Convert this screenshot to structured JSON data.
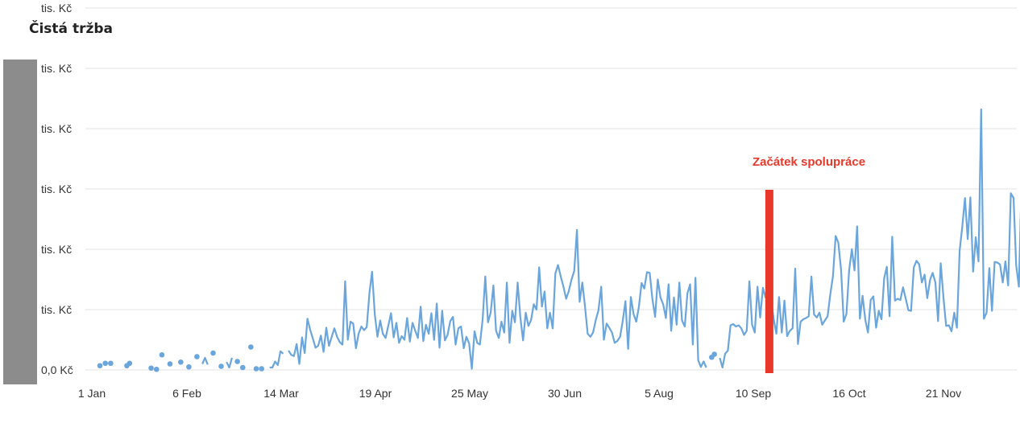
{
  "title": "Čistá tržba",
  "chart_data": {
    "type": "line",
    "ylabels": [
      "0,0 Kč",
      "tis. Kč",
      "tis. Kč",
      "tis. Kč",
      "tis. Kč",
      "tis. Kč",
      "tis. Kč"
    ],
    "xlabels": [
      "1 Jan",
      "6 Feb",
      "14 Mar",
      "19 Apr",
      "25 May",
      "30 Jun",
      "5 Aug",
      "10 Sep",
      "16 Oct",
      "21 Nov"
    ],
    "annotation": {
      "label": "Začátek spolupráce",
      "day": 246
    },
    "series": [
      {
        "color": "#6aa5dc",
        "points": [
          [
            0,
            0.07
          ],
          [
            2,
            0.11
          ],
          [
            4,
            0.11
          ],
          [
            10,
            0.07
          ],
          [
            11,
            0.11
          ],
          [
            19,
            0.03
          ],
          [
            21,
            0.01
          ],
          [
            23,
            0.25
          ],
          [
            26,
            0.1
          ],
          [
            30,
            0.13
          ],
          [
            33,
            0.05
          ],
          [
            36,
            0.22
          ],
          [
            38,
            0.1
          ],
          [
            39,
            0.2
          ],
          [
            40,
            0.09
          ],
          [
            42,
            0.28
          ],
          [
            45,
            0.06
          ],
          [
            47,
            0.13
          ],
          [
            48,
            0.04
          ],
          [
            49,
            0.2
          ],
          [
            51,
            0.14
          ],
          [
            53,
            0.04
          ],
          [
            56,
            0.38
          ],
          [
            58,
            0.02
          ],
          [
            60,
            0.02
          ],
          [
            63,
            0.04
          ],
          [
            64,
            0.04
          ],
          [
            65,
            0.14
          ],
          [
            66,
            0.08
          ],
          [
            67,
            0.31
          ],
          [
            68,
            0.27
          ],
          [
            70,
            0.32
          ],
          [
            71,
            0.25
          ],
          [
            72,
            0.23
          ],
          [
            73,
            0.43
          ],
          [
            74,
            0.1
          ],
          [
            75,
            0.54
          ],
          [
            76,
            0.28
          ],
          [
            77,
            0.85
          ],
          [
            78,
            0.67
          ],
          [
            79,
            0.52
          ],
          [
            80,
            0.37
          ],
          [
            81,
            0.4
          ],
          [
            82,
            0.57
          ],
          [
            83,
            0.3
          ],
          [
            84,
            0.7
          ],
          [
            85,
            0.4
          ],
          [
            86,
            0.55
          ],
          [
            87,
            0.69
          ],
          [
            88,
            0.55
          ],
          [
            89,
            0.46
          ],
          [
            90,
            0.42
          ],
          [
            91,
            1.47
          ],
          [
            92,
            0.5
          ],
          [
            93,
            0.8
          ],
          [
            94,
            0.77
          ],
          [
            95,
            0.36
          ],
          [
            96,
            0.6
          ],
          [
            97,
            0.72
          ],
          [
            98,
            0.66
          ],
          [
            99,
            0.71
          ],
          [
            100,
            1.27
          ],
          [
            101,
            1.63
          ],
          [
            102,
            0.92
          ],
          [
            103,
            0.55
          ],
          [
            104,
            0.82
          ],
          [
            105,
            0.6
          ],
          [
            106,
            0.53
          ],
          [
            107,
            0.73
          ],
          [
            108,
            0.94
          ],
          [
            109,
            0.54
          ],
          [
            110,
            0.78
          ],
          [
            111,
            0.45
          ],
          [
            112,
            0.56
          ],
          [
            113,
            0.5
          ],
          [
            114,
            0.86
          ],
          [
            115,
            0.47
          ],
          [
            116,
            0.78
          ],
          [
            117,
            0.65
          ],
          [
            118,
            0.53
          ],
          [
            119,
            1.05
          ],
          [
            120,
            0.48
          ],
          [
            121,
            0.75
          ],
          [
            122,
            0.6
          ],
          [
            123,
            0.94
          ],
          [
            124,
            0.5
          ],
          [
            125,
            1.1
          ],
          [
            126,
            0.37
          ],
          [
            127,
            0.98
          ],
          [
            128,
            0.49
          ],
          [
            129,
            0.58
          ],
          [
            130,
            0.81
          ],
          [
            131,
            0.88
          ],
          [
            132,
            0.42
          ],
          [
            133,
            0.69
          ],
          [
            134,
            0.72
          ],
          [
            135,
            0.36
          ],
          [
            136,
            0.55
          ],
          [
            137,
            0.44
          ],
          [
            138,
            0.02
          ],
          [
            139,
            0.64
          ],
          [
            140,
            0.45
          ],
          [
            141,
            0.42
          ],
          [
            142,
            0.83
          ],
          [
            143,
            1.55
          ],
          [
            144,
            0.79
          ],
          [
            145,
            0.95
          ],
          [
            146,
            1.4
          ],
          [
            147,
            0.65
          ],
          [
            148,
            0.53
          ],
          [
            149,
            0.8
          ],
          [
            150,
            0.62
          ],
          [
            151,
            1.45
          ],
          [
            152,
            0.45
          ],
          [
            153,
            0.98
          ],
          [
            154,
            0.79
          ],
          [
            155,
            1.45
          ],
          [
            156,
            0.88
          ],
          [
            157,
            0.49
          ],
          [
            158,
            0.95
          ],
          [
            159,
            0.73
          ],
          [
            160,
            0.83
          ],
          [
            161,
            1.09
          ],
          [
            162,
            1.0
          ],
          [
            163,
            1.7
          ],
          [
            164,
            1.05
          ],
          [
            165,
            1.3
          ],
          [
            166,
            0.69
          ],
          [
            167,
            0.95
          ],
          [
            168,
            0.69
          ],
          [
            169,
            1.6
          ],
          [
            170,
            1.74
          ],
          [
            171,
            1.55
          ],
          [
            172,
            1.38
          ],
          [
            173,
            1.18
          ],
          [
            174,
            1.31
          ],
          [
            175,
            1.5
          ],
          [
            176,
            1.64
          ],
          [
            177,
            2.32
          ],
          [
            178,
            1.13
          ],
          [
            179,
            1.45
          ],
          [
            180,
            1.05
          ],
          [
            181,
            0.6
          ],
          [
            182,
            0.55
          ],
          [
            183,
            0.62
          ],
          [
            184,
            0.83
          ],
          [
            185,
            0.99
          ],
          [
            186,
            1.38
          ],
          [
            187,
            0.5
          ],
          [
            188,
            0.77
          ],
          [
            189,
            0.7
          ],
          [
            190,
            0.62
          ],
          [
            191,
            0.45
          ],
          [
            192,
            0.48
          ],
          [
            193,
            0.55
          ],
          [
            194,
            0.81
          ],
          [
            195,
            1.14
          ],
          [
            196,
            0.35
          ],
          [
            197,
            1.21
          ],
          [
            198,
            0.93
          ],
          [
            199,
            0.8
          ],
          [
            200,
            1.05
          ],
          [
            201,
            1.44
          ],
          [
            202,
            1.35
          ],
          [
            203,
            1.62
          ],
          [
            204,
            1.61
          ],
          [
            205,
            1.18
          ],
          [
            206,
            0.88
          ],
          [
            207,
            1.5
          ],
          [
            208,
            1.2
          ],
          [
            209,
            1.09
          ],
          [
            210,
            0.86
          ],
          [
            211,
            1.42
          ],
          [
            212,
            0.65
          ],
          [
            213,
            1.2
          ],
          [
            214,
            0.75
          ],
          [
            215,
            1.45
          ],
          [
            216,
            0.82
          ],
          [
            217,
            0.72
          ],
          [
            218,
            1.27
          ],
          [
            219,
            1.42
          ],
          [
            220,
            0.42
          ],
          [
            221,
            1.53
          ],
          [
            222,
            0.16
          ],
          [
            223,
            0.05
          ],
          [
            224,
            0.14
          ],
          [
            225,
            0.04
          ],
          [
            227,
            0.21
          ],
          [
            228,
            0.26
          ],
          [
            230,
            0.2
          ],
          [
            231,
            0.04
          ],
          [
            232,
            0.27
          ],
          [
            233,
            0.32
          ],
          [
            234,
            0.74
          ],
          [
            235,
            0.76
          ],
          [
            236,
            0.72
          ],
          [
            237,
            0.74
          ],
          [
            238,
            0.69
          ],
          [
            239,
            0.58
          ],
          [
            240,
            0.65
          ],
          [
            241,
            1.47
          ],
          [
            242,
            0.75
          ],
          [
            243,
            0.62
          ],
          [
            244,
            1.38
          ],
          [
            245,
            0.87
          ],
          [
            246,
            1.36
          ],
          [
            247,
            1.2
          ],
          [
            248,
            1.28
          ],
          [
            249,
            1.19
          ],
          [
            250,
            0.84
          ],
          [
            251,
            0.6
          ],
          [
            252,
            1.21
          ],
          [
            253,
            0.62
          ],
          [
            254,
            1.15
          ],
          [
            255,
            0.56
          ],
          [
            256,
            0.65
          ],
          [
            257,
            0.69
          ],
          [
            258,
            1.68
          ],
          [
            259,
            0.43
          ],
          [
            260,
            0.8
          ],
          [
            261,
            0.84
          ],
          [
            262,
            0.86
          ],
          [
            263,
            0.89
          ],
          [
            264,
            1.55
          ],
          [
            265,
            0.92
          ],
          [
            266,
            0.87
          ],
          [
            267,
            0.95
          ],
          [
            268,
            0.75
          ],
          [
            269,
            0.82
          ],
          [
            270,
            0.89
          ],
          [
            271,
            1.25
          ],
          [
            272,
            1.55
          ],
          [
            273,
            2.22
          ],
          [
            274,
            2.11
          ],
          [
            275,
            1.66
          ],
          [
            276,
            0.8
          ],
          [
            277,
            0.93
          ],
          [
            278,
            1.65
          ],
          [
            279,
            2.0
          ],
          [
            280,
            1.65
          ],
          [
            281,
            2.38
          ],
          [
            282,
            0.85
          ],
          [
            283,
            1.23
          ],
          [
            284,
            0.83
          ],
          [
            285,
            0.62
          ],
          [
            286,
            1.16
          ],
          [
            287,
            1.22
          ],
          [
            288,
            0.7
          ],
          [
            289,
            0.98
          ],
          [
            290,
            0.84
          ],
          [
            291,
            1.52
          ],
          [
            292,
            1.71
          ],
          [
            293,
            0.89
          ],
          [
            294,
            2.21
          ],
          [
            295,
            1.15
          ],
          [
            296,
            1.18
          ],
          [
            297,
            1.16
          ],
          [
            298,
            1.37
          ],
          [
            299,
            1.18
          ],
          [
            300,
            0.99
          ],
          [
            301,
            0.98
          ],
          [
            302,
            1.7
          ],
          [
            303,
            1.81
          ],
          [
            304,
            1.75
          ],
          [
            305,
            1.45
          ],
          [
            306,
            1.58
          ],
          [
            307,
            1.19
          ],
          [
            308,
            1.49
          ],
          [
            309,
            1.61
          ],
          [
            310,
            1.45
          ],
          [
            311,
            0.81
          ],
          [
            312,
            1.77
          ],
          [
            313,
            1.2
          ],
          [
            314,
            0.73
          ],
          [
            315,
            0.74
          ],
          [
            316,
            0.64
          ],
          [
            317,
            0.95
          ],
          [
            318,
            0.7
          ],
          [
            319,
            1.98
          ],
          [
            320,
            2.38
          ],
          [
            321,
            2.85
          ],
          [
            322,
            2.17
          ],
          [
            323,
            2.86
          ],
          [
            324,
            1.63
          ],
          [
            325,
            2.2
          ],
          [
            326,
            1.8
          ],
          [
            327,
            4.32
          ],
          [
            328,
            0.85
          ],
          [
            329,
            0.95
          ],
          [
            330,
            1.69
          ],
          [
            331,
            0.98
          ],
          [
            332,
            1.79
          ],
          [
            333,
            1.78
          ],
          [
            334,
            1.75
          ],
          [
            335,
            1.45
          ],
          [
            336,
            1.8
          ],
          [
            337,
            1.4
          ],
          [
            338,
            2.93
          ],
          [
            339,
            2.85
          ],
          [
            340,
            1.73
          ],
          [
            341,
            1.38
          ],
          [
            342,
            3.15
          ],
          [
            343,
            2.76
          ],
          [
            344,
            2.99
          ],
          [
            345,
            2.8
          ]
        ]
      }
    ]
  }
}
